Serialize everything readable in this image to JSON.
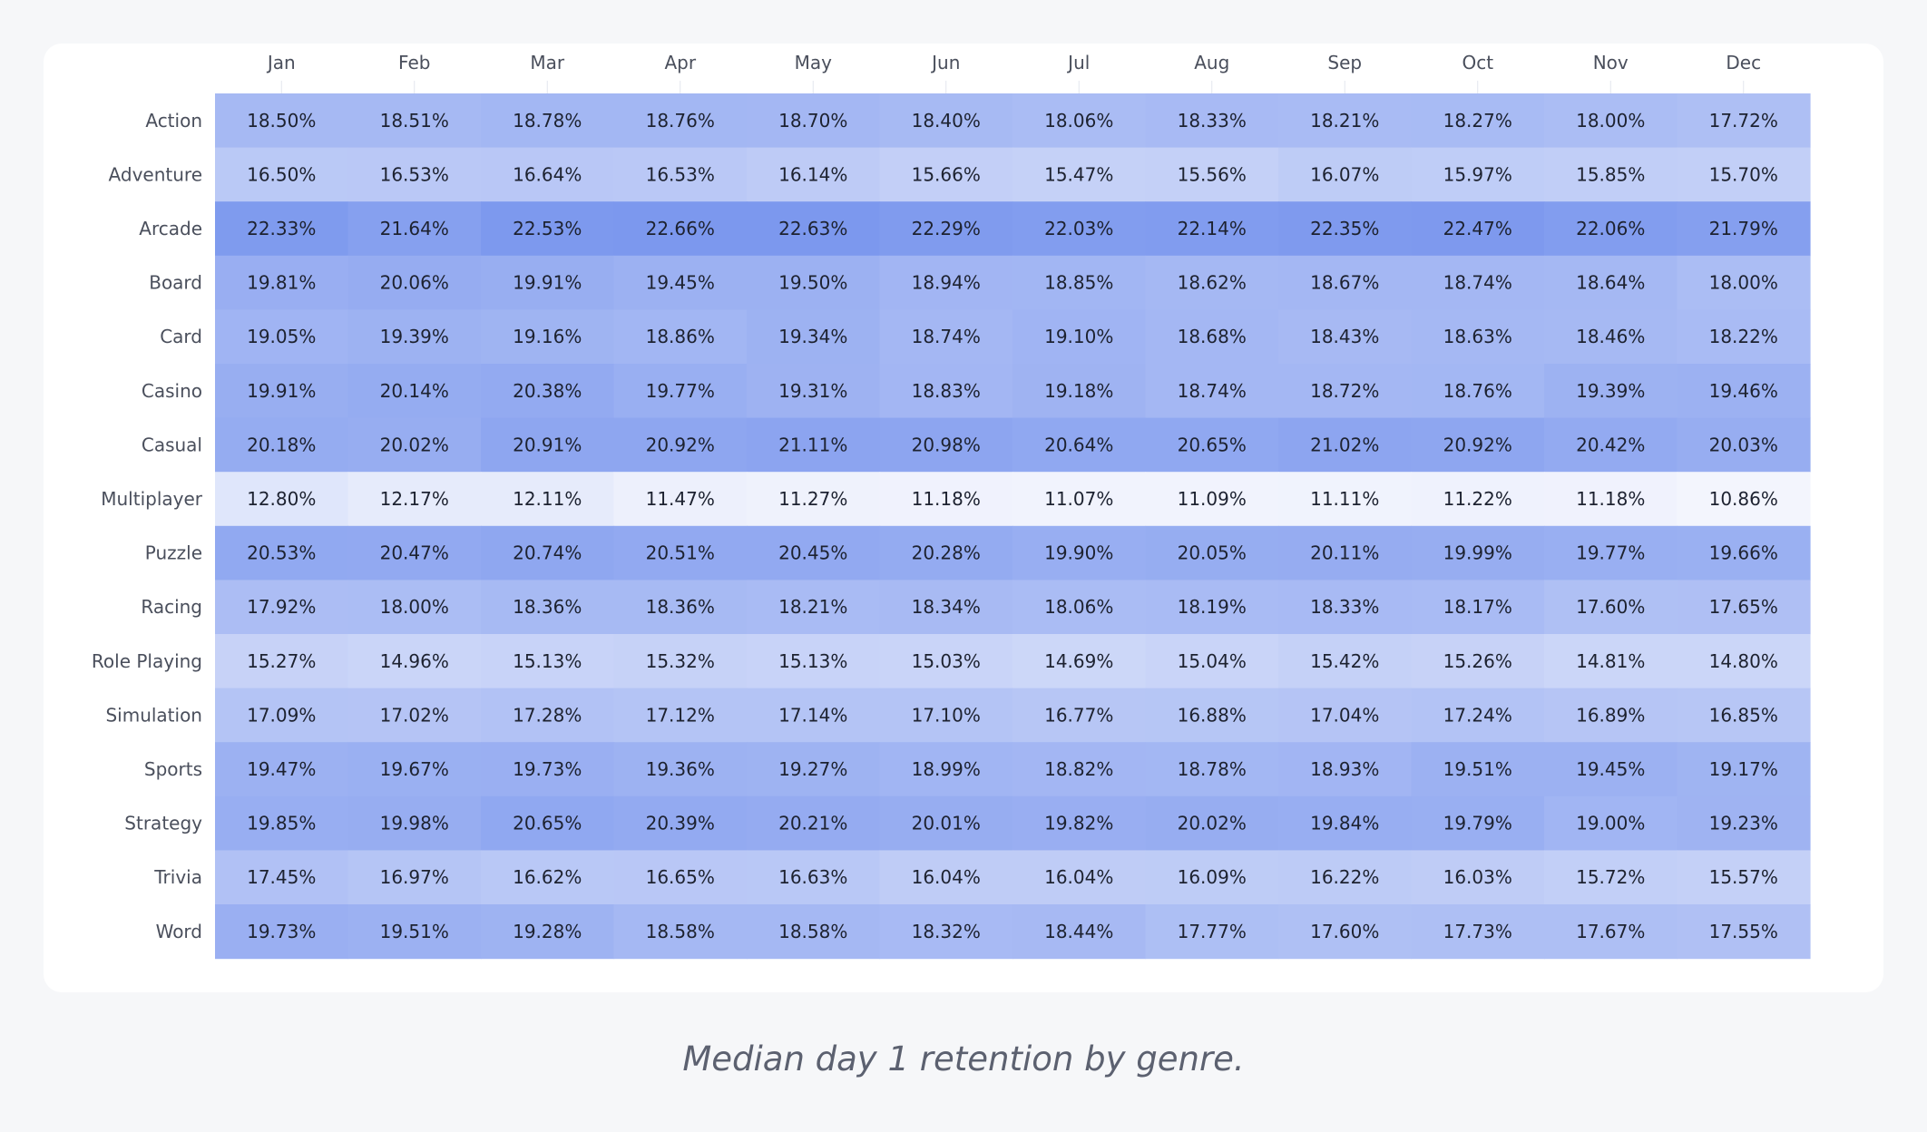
{
  "caption": "Median day 1 retention by genre.",
  "chart_data": {
    "type": "heatmap",
    "title": "",
    "x": [
      "Jan",
      "Feb",
      "Mar",
      "Apr",
      "May",
      "Jun",
      "Jul",
      "Aug",
      "Sep",
      "Oct",
      "Nov",
      "Dec"
    ],
    "y": [
      "Action",
      "Adventure",
      "Arcade",
      "Board",
      "Card",
      "Casino",
      "Casual",
      "Multiplayer",
      "Puzzle",
      "Racing",
      "Role Playing",
      "Simulation",
      "Sports",
      "Strategy",
      "Trivia",
      "Word"
    ],
    "value_suffix": "%",
    "values": [
      [
        18.5,
        18.51,
        18.78,
        18.76,
        18.7,
        18.4,
        18.06,
        18.33,
        18.21,
        18.27,
        18.0,
        17.72
      ],
      [
        16.5,
        16.53,
        16.64,
        16.53,
        16.14,
        15.66,
        15.47,
        15.56,
        16.07,
        15.97,
        15.85,
        15.7
      ],
      [
        22.33,
        21.64,
        22.53,
        22.66,
        22.63,
        22.29,
        22.03,
        22.14,
        22.35,
        22.47,
        22.06,
        21.79
      ],
      [
        19.81,
        20.06,
        19.91,
        19.45,
        19.5,
        18.94,
        18.85,
        18.62,
        18.67,
        18.74,
        18.64,
        18.0
      ],
      [
        19.05,
        19.39,
        19.16,
        18.86,
        19.34,
        18.74,
        19.1,
        18.68,
        18.43,
        18.63,
        18.46,
        18.22
      ],
      [
        19.91,
        20.14,
        20.38,
        19.77,
        19.31,
        18.83,
        19.18,
        18.74,
        18.72,
        18.76,
        19.39,
        19.46
      ],
      [
        20.18,
        20.02,
        20.91,
        20.92,
        21.11,
        20.98,
        20.64,
        20.65,
        21.02,
        20.92,
        20.42,
        20.03
      ],
      [
        12.8,
        12.17,
        12.11,
        11.47,
        11.27,
        11.18,
        11.07,
        11.09,
        11.11,
        11.22,
        11.18,
        10.86
      ],
      [
        20.53,
        20.47,
        20.74,
        20.51,
        20.45,
        20.28,
        19.9,
        20.05,
        20.11,
        19.99,
        19.77,
        19.66
      ],
      [
        17.92,
        18.0,
        18.36,
        18.36,
        18.21,
        18.34,
        18.06,
        18.19,
        18.33,
        18.17,
        17.6,
        17.65
      ],
      [
        15.27,
        14.96,
        15.13,
        15.32,
        15.13,
        15.03,
        14.69,
        15.04,
        15.42,
        15.26,
        14.81,
        14.8
      ],
      [
        17.09,
        17.02,
        17.28,
        17.12,
        17.14,
        17.1,
        16.77,
        16.88,
        17.04,
        17.24,
        16.89,
        16.85
      ],
      [
        19.47,
        19.67,
        19.73,
        19.36,
        19.27,
        18.99,
        18.82,
        18.78,
        18.93,
        19.51,
        19.45,
        19.17
      ],
      [
        19.85,
        19.98,
        20.65,
        20.39,
        20.21,
        20.01,
        19.82,
        20.02,
        19.84,
        19.79,
        19.0,
        19.23
      ],
      [
        17.45,
        16.97,
        16.62,
        16.65,
        16.63,
        16.04,
        16.04,
        16.09,
        16.22,
        16.03,
        15.72,
        15.57
      ],
      [
        19.73,
        19.51,
        19.28,
        18.58,
        18.58,
        18.32,
        18.44,
        17.77,
        17.6,
        17.73,
        17.67,
        17.55
      ]
    ],
    "color_low": "#f3f5fd",
    "color_high": "#7c98ee",
    "grid": false,
    "legend": "none"
  }
}
